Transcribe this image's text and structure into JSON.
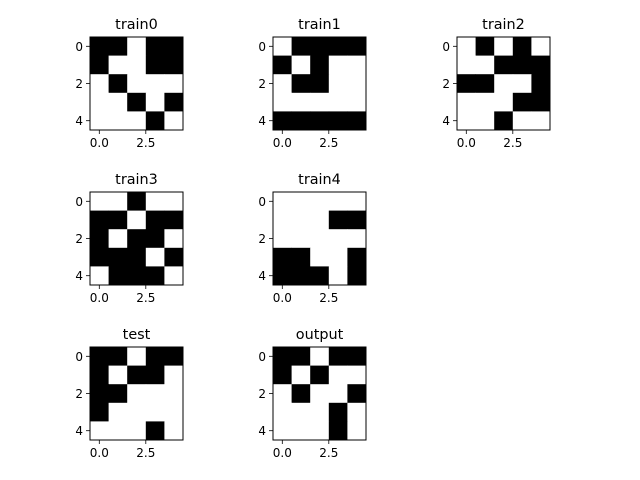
{
  "figure": {
    "background": "#ffffff",
    "cell_colors": {
      "0": "#ffffff",
      "1": "#000000"
    }
  },
  "chart_data": [
    {
      "type": "heatmap",
      "title": "train0",
      "xticks": [
        "0.0",
        "2.5"
      ],
      "yticks": [
        "0",
        "2",
        "4"
      ],
      "xlim": [
        -0.5,
        4.5
      ],
      "ylim": [
        4.5,
        -0.5
      ],
      "grid": false,
      "values": [
        [
          1,
          1,
          0,
          1,
          1
        ],
        [
          1,
          0,
          0,
          1,
          1
        ],
        [
          0,
          1,
          0,
          0,
          0
        ],
        [
          0,
          0,
          1,
          0,
          1
        ],
        [
          0,
          0,
          0,
          1,
          0
        ]
      ]
    },
    {
      "type": "heatmap",
      "title": "train1",
      "xticks": [
        "0.0",
        "2.5"
      ],
      "yticks": [
        "0",
        "2",
        "4"
      ],
      "xlim": [
        -0.5,
        4.5
      ],
      "ylim": [
        4.5,
        -0.5
      ],
      "grid": false,
      "values": [
        [
          0,
          1,
          1,
          1,
          1
        ],
        [
          1,
          0,
          1,
          0,
          0
        ],
        [
          0,
          1,
          1,
          0,
          0
        ],
        [
          0,
          0,
          0,
          0,
          0
        ],
        [
          1,
          1,
          1,
          1,
          1
        ]
      ]
    },
    {
      "type": "heatmap",
      "title": "train2",
      "xticks": [
        "0.0",
        "2.5"
      ],
      "yticks": [
        "0",
        "2",
        "4"
      ],
      "xlim": [
        -0.5,
        4.5
      ],
      "ylim": [
        4.5,
        -0.5
      ],
      "grid": false,
      "values": [
        [
          0,
          1,
          0,
          1,
          0
        ],
        [
          0,
          0,
          1,
          1,
          1
        ],
        [
          1,
          1,
          0,
          0,
          1
        ],
        [
          0,
          0,
          0,
          1,
          1
        ],
        [
          0,
          0,
          1,
          0,
          0
        ]
      ]
    },
    {
      "type": "heatmap",
      "title": "train3",
      "xticks": [
        "0.0",
        "2.5"
      ],
      "yticks": [
        "0",
        "2",
        "4"
      ],
      "xlim": [
        -0.5,
        4.5
      ],
      "ylim": [
        4.5,
        -0.5
      ],
      "grid": false,
      "values": [
        [
          0,
          0,
          1,
          0,
          0
        ],
        [
          1,
          1,
          0,
          1,
          1
        ],
        [
          1,
          0,
          1,
          1,
          0
        ],
        [
          1,
          1,
          1,
          0,
          1
        ],
        [
          0,
          1,
          1,
          1,
          0
        ]
      ]
    },
    {
      "type": "heatmap",
      "title": "train4",
      "xticks": [
        "0.0",
        "2.5"
      ],
      "yticks": [
        "0",
        "2",
        "4"
      ],
      "xlim": [
        -0.5,
        4.5
      ],
      "ylim": [
        4.5,
        -0.5
      ],
      "grid": false,
      "values": [
        [
          0,
          0,
          0,
          0,
          0
        ],
        [
          0,
          0,
          0,
          1,
          1
        ],
        [
          0,
          0,
          0,
          0,
          0
        ],
        [
          1,
          1,
          0,
          0,
          1
        ],
        [
          1,
          1,
          1,
          0,
          1
        ]
      ]
    },
    {
      "type": "heatmap",
      "title": "test",
      "xticks": [
        "0.0",
        "2.5"
      ],
      "yticks": [
        "0",
        "2",
        "4"
      ],
      "xlim": [
        -0.5,
        4.5
      ],
      "ylim": [
        4.5,
        -0.5
      ],
      "grid": false,
      "values": [
        [
          1,
          1,
          0,
          1,
          1
        ],
        [
          1,
          0,
          1,
          1,
          0
        ],
        [
          1,
          1,
          0,
          0,
          0
        ],
        [
          1,
          0,
          0,
          0,
          0
        ],
        [
          0,
          0,
          0,
          1,
          0
        ]
      ]
    },
    {
      "type": "heatmap",
      "title": "output",
      "xticks": [
        "0.0",
        "2.5"
      ],
      "yticks": [
        "0",
        "2",
        "4"
      ],
      "xlim": [
        -0.5,
        4.5
      ],
      "ylim": [
        4.5,
        -0.5
      ],
      "grid": false,
      "values": [
        [
          1,
          1,
          0,
          1,
          1
        ],
        [
          1,
          0,
          1,
          0,
          0
        ],
        [
          0,
          1,
          0,
          0,
          1
        ],
        [
          0,
          0,
          0,
          1,
          0
        ],
        [
          0,
          0,
          0,
          1,
          0
        ]
      ]
    }
  ]
}
